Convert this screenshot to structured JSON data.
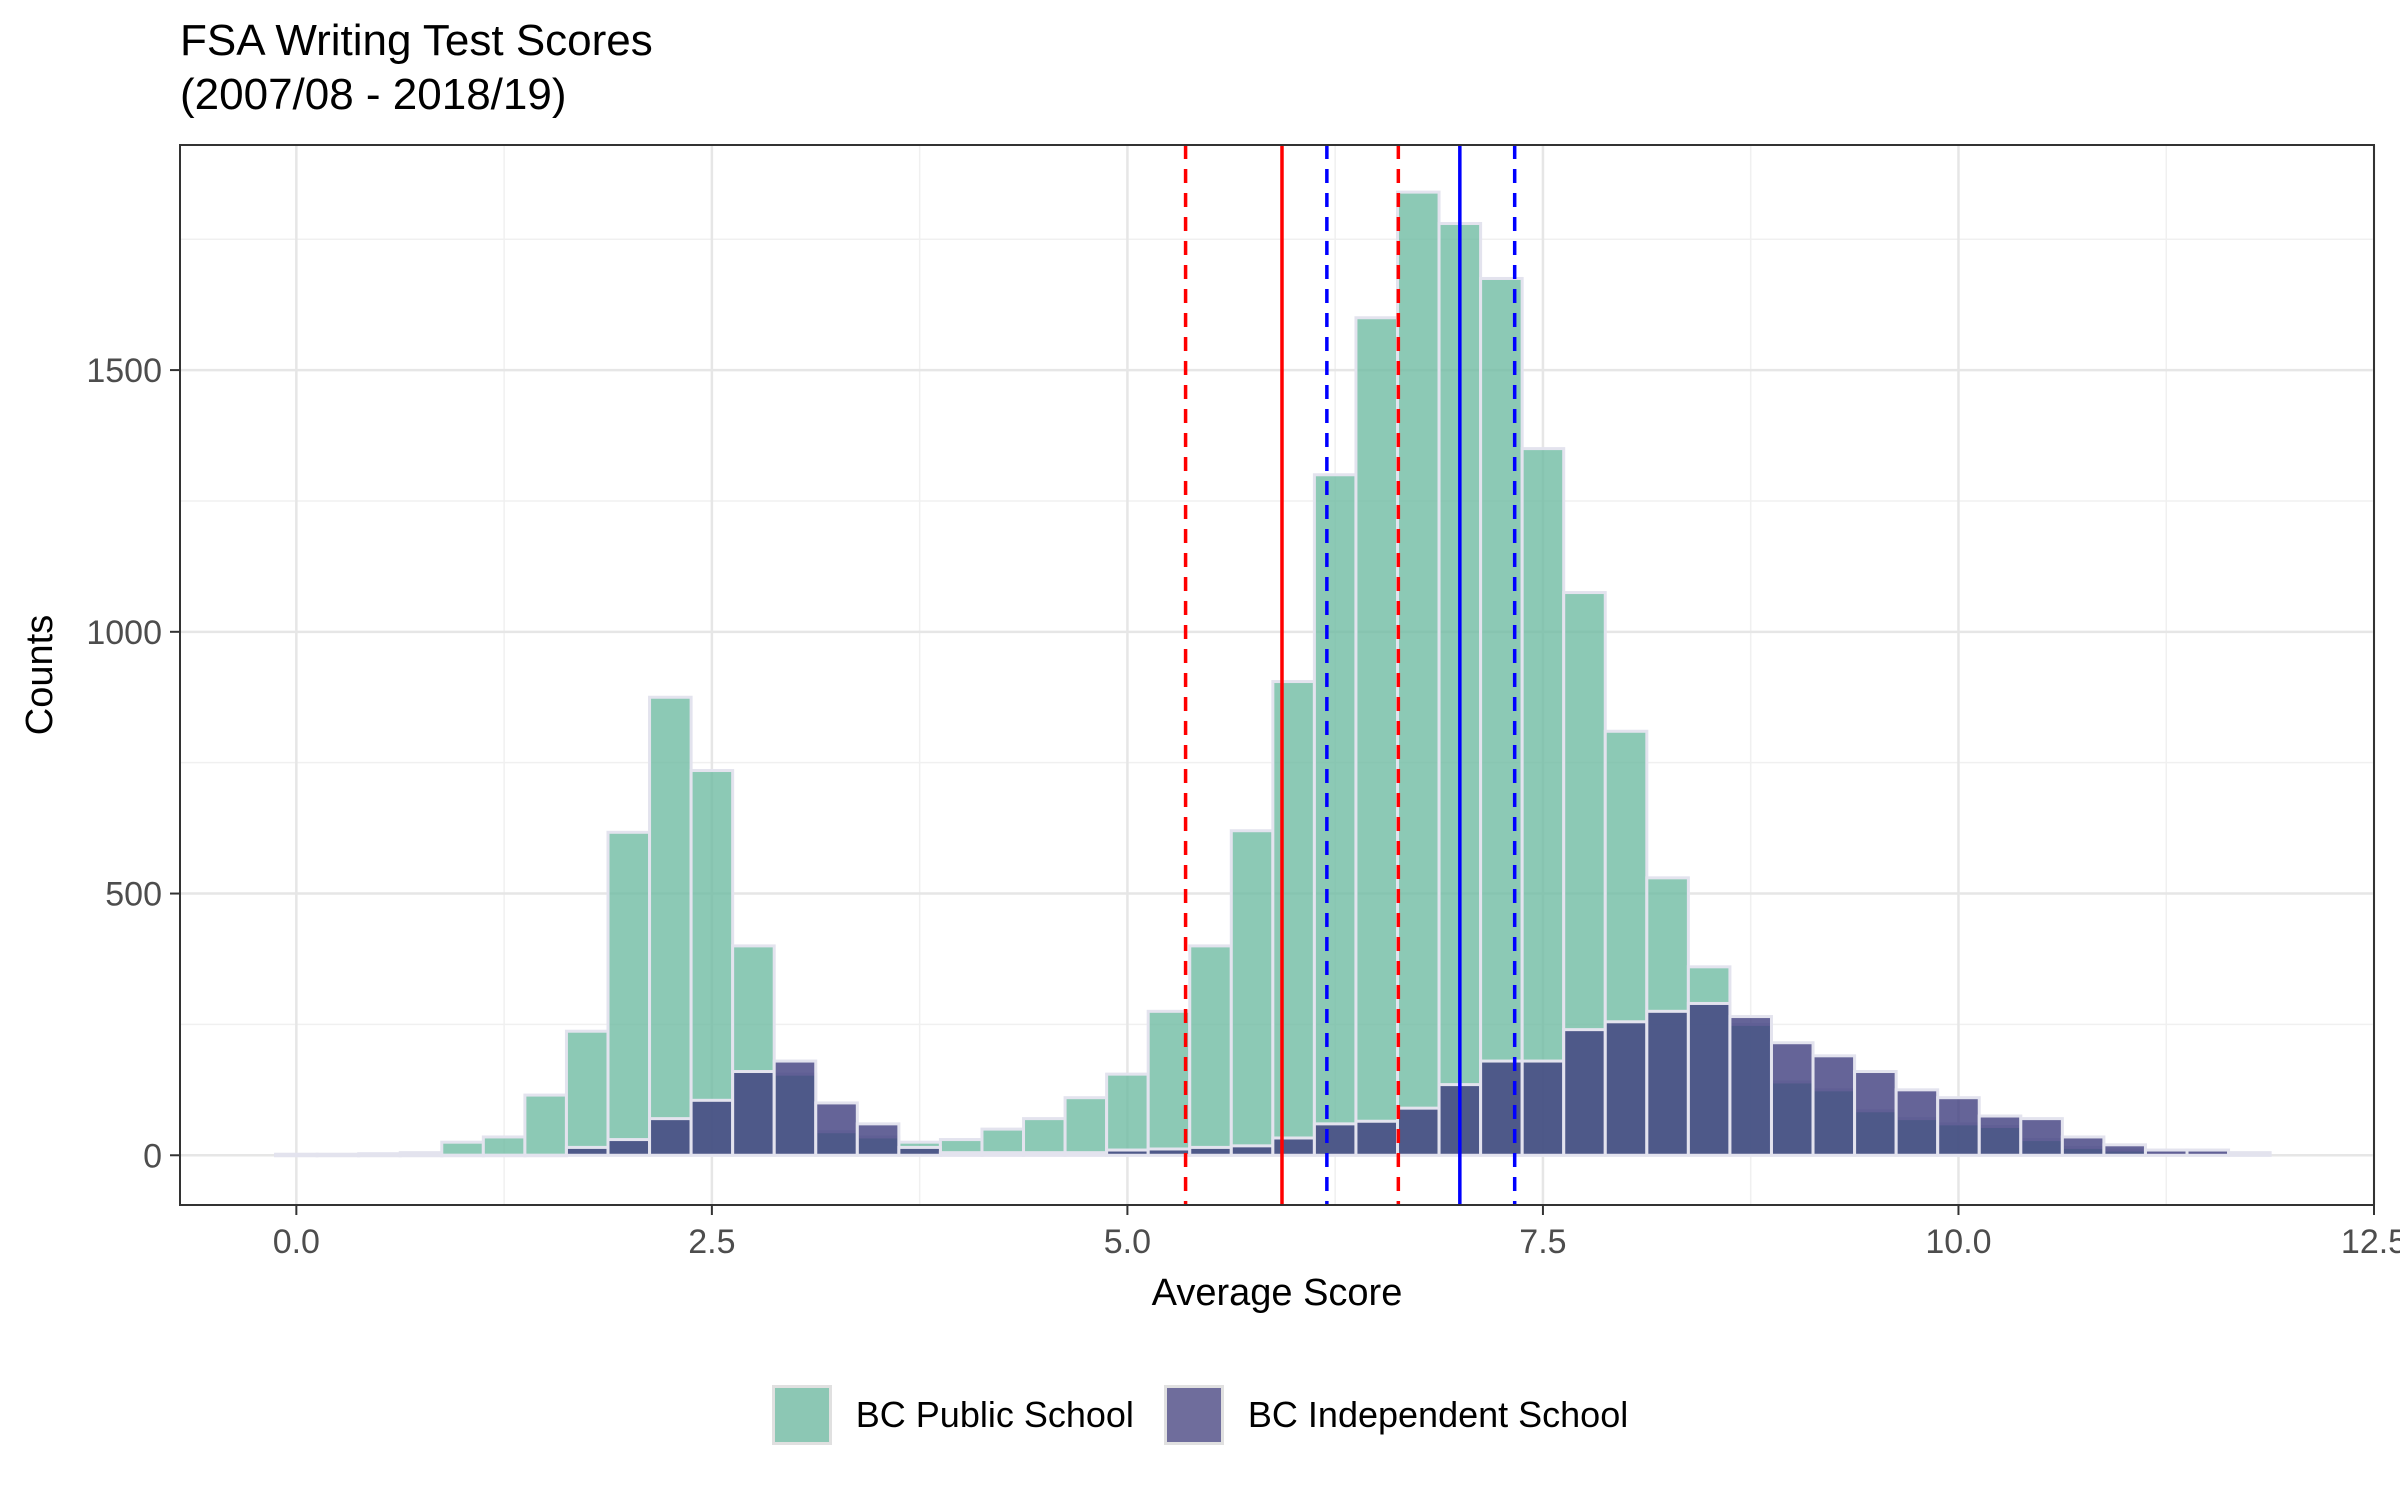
{
  "chart_data": {
    "type": "histogram",
    "title": "FSA Writing Test Scores",
    "subtitle": "(2007/08 - 2018/19)",
    "xlabel": "Average Score",
    "ylabel": "Counts",
    "xlim": [
      -0.7,
      12.5
    ],
    "ylim": [
      -95,
      1930
    ],
    "x_ticks": [
      0,
      2.5,
      5,
      7.5,
      10,
      12.5
    ],
    "x_tick_labels": [
      "0.0",
      "2.5",
      "5.0",
      "7.5",
      "10.0",
      "12.5"
    ],
    "y_ticks": [
      0,
      500,
      1000,
      1500
    ],
    "y_tick_labels": [
      "0",
      "500",
      "1000",
      "1500"
    ],
    "bin_width": 0.25,
    "bin_starts": [
      -0.125,
      0.125,
      0.375,
      0.625,
      0.875,
      1.125,
      1.375,
      1.625,
      1.875,
      2.125,
      2.375,
      2.625,
      2.875,
      3.125,
      3.375,
      3.625,
      3.875,
      4.125,
      4.375,
      4.625,
      4.875,
      5.125,
      5.375,
      5.625,
      5.875,
      6.125,
      6.375,
      6.625,
      6.875,
      7.125,
      7.375,
      7.625,
      7.875,
      8.125,
      8.375,
      8.625,
      8.875,
      9.125,
      9.375,
      9.625,
      9.875,
      10.125,
      10.375,
      10.625,
      10.875,
      11.125,
      11.375,
      11.625
    ],
    "series": [
      {
        "name": "BC Public School",
        "color": "#6fbba3",
        "values": [
          2,
          2,
          3,
          5,
          25,
          35,
          115,
          237,
          617,
          875,
          735,
          400,
          155,
          45,
          35,
          25,
          30,
          50,
          70,
          110,
          155,
          275,
          400,
          620,
          905,
          1300,
          1600,
          1840,
          1780,
          1675,
          1350,
          1075,
          810,
          530,
          360,
          250,
          140,
          125,
          85,
          70,
          60,
          55,
          30,
          15,
          10,
          5,
          3,
          2
        ]
      },
      {
        "name": "BC Independent School",
        "color": "#3f3d7e",
        "values": [
          0,
          0,
          0,
          0,
          0,
          0,
          0,
          15,
          30,
          70,
          105,
          160,
          180,
          100,
          60,
          15,
          5,
          5,
          5,
          5,
          10,
          12,
          15,
          18,
          33,
          60,
          65,
          90,
          135,
          180,
          180,
          240,
          255,
          275,
          290,
          265,
          215,
          190,
          160,
          125,
          110,
          75,
          70,
          35,
          20,
          10,
          10,
          5
        ]
      }
    ],
    "vertical_lines": [
      {
        "x": 5.35,
        "color": "#ff0000",
        "style": "dashed"
      },
      {
        "x": 5.93,
        "color": "#ff0000",
        "style": "solid"
      },
      {
        "x": 6.63,
        "color": "#ff0000",
        "style": "dashed"
      },
      {
        "x": 6.2,
        "color": "#0000ff",
        "style": "dashed"
      },
      {
        "x": 7.0,
        "color": "#0000ff",
        "style": "solid"
      },
      {
        "x": 7.33,
        "color": "#0000ff",
        "style": "dashed"
      }
    ],
    "legend": [
      {
        "label": "BC Public School",
        "color": "#8cc7b4"
      },
      {
        "label": "BC Independent School",
        "color": "#6f6d9c"
      }
    ],
    "legend_position": "bottom"
  }
}
